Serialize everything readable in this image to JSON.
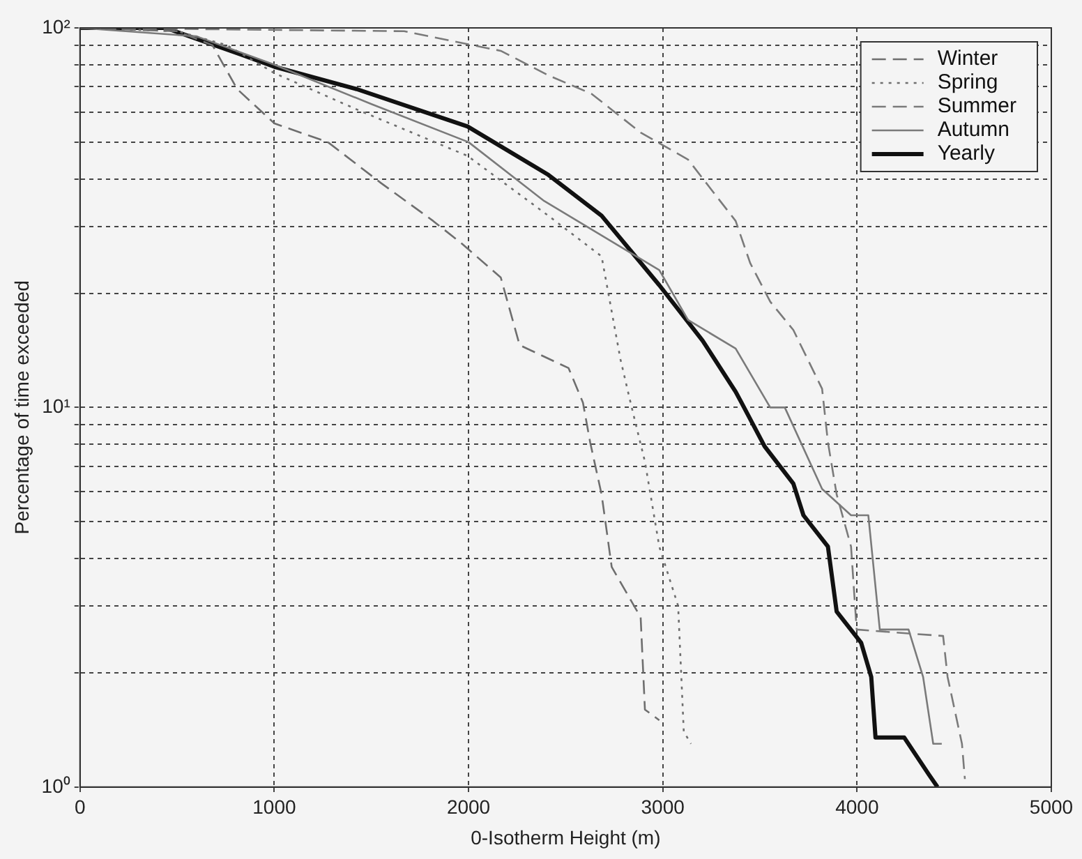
{
  "chart_data": {
    "type": "line",
    "xlabel": "0-Isotherm Height (m)",
    "ylabel": "Percentage of time exceeded",
    "log": "y",
    "grid": true,
    "legend": "top right",
    "marker": "none",
    "xlim": [
      0,
      5000
    ],
    "xticks": [
      0,
      1000,
      2000,
      3000,
      4000,
      5000
    ],
    "ylim": [
      1,
      100
    ],
    "yticks": [
      {
        "value": 1,
        "label": "10⁰"
      },
      {
        "value": 2,
        "label": null
      },
      {
        "value": 3,
        "label": null
      },
      {
        "value": 4,
        "label": null
      },
      {
        "value": 5,
        "label": null
      },
      {
        "value": 6,
        "label": null
      },
      {
        "value": 7,
        "label": null
      },
      {
        "value": 8,
        "label": null
      },
      {
        "value": 9,
        "label": null
      },
      {
        "value": 10,
        "label": "10¹"
      },
      {
        "value": 20,
        "label": null
      },
      {
        "value": 30,
        "label": null
      },
      {
        "value": 40,
        "label": null
      },
      {
        "value": 50,
        "label": null
      },
      {
        "value": 60,
        "label": null
      },
      {
        "value": 70,
        "label": null
      },
      {
        "value": 80,
        "label": null
      },
      {
        "value": 90,
        "label": null
      },
      {
        "value": 100,
        "label": "10²"
      }
    ],
    "series": [
      {
        "name": "Winter",
        "color": "#6e6e6e",
        "line_style": "dashed",
        "x": [
          0,
          500,
          682,
          809,
          1001,
          1276,
          1550,
          1818,
          1966,
          2166,
          2263,
          2515,
          2589,
          2626,
          2685,
          2737,
          2886,
          2908,
          2982
        ],
        "values": [
          100,
          98,
          90,
          69,
          56,
          50,
          39,
          31,
          27,
          22,
          14.6,
          12.7,
          10.3,
          8.1,
          5.9,
          3.8,
          2.8,
          1.6,
          1.5
        ]
      },
      {
        "name": "Spring",
        "color": "#6e6e6e",
        "line_style": "dotted",
        "x": [
          0,
          500,
          757,
          1001,
          1424,
          1995,
          2411,
          2685,
          2782,
          2834,
          2908,
          2982,
          3079,
          3108,
          3145
        ],
        "values": [
          100,
          98,
          90,
          76,
          61,
          46,
          32,
          25,
          13.4,
          10.3,
          7.2,
          4.3,
          3,
          1.4,
          1.3
        ]
      },
      {
        "name": "Summer",
        "color": "#7a7a7a",
        "line_style": "dashed",
        "x": [
          0,
          1669,
          2166,
          2411,
          2634,
          2886,
          3130,
          3375,
          3450,
          3553,
          3672,
          3820,
          3850,
          3895,
          3969,
          3998,
          4443,
          4466,
          4540,
          4555
        ],
        "values": [
          100,
          98,
          87,
          75,
          67,
          53,
          45,
          31,
          24,
          19,
          16,
          11.2,
          8.1,
          5.9,
          4.3,
          2.6,
          2.5,
          1.95,
          1.3,
          1.05
        ]
      },
      {
        "name": "Autumn",
        "color": "#7a7a7a",
        "line_style": "solid",
        "x": [
          0,
          600,
          1000,
          1500,
          2000,
          2389,
          2982,
          3130,
          3375,
          3553,
          3628,
          3820,
          3969,
          4058,
          4117,
          4265,
          4340,
          4392,
          4436
        ],
        "values": [
          100,
          95,
          80,
          63,
          50,
          35,
          23,
          17,
          14.3,
          10,
          10,
          6.1,
          5.2,
          5.2,
          2.6,
          2.6,
          1.95,
          1.3,
          1.3
        ]
      },
      {
        "name": "Yearly",
        "color": "#111111",
        "line_style": "solid",
        "x": [
          0,
          440,
          831,
          1001,
          1424,
          1995,
          2411,
          2685,
          2982,
          3205,
          3375,
          3405,
          3524,
          3672,
          3724,
          3850,
          3895,
          4021,
          4073,
          4095,
          4243,
          4369,
          4414
        ],
        "values": [
          100,
          100,
          85,
          79,
          69,
          55,
          41,
          32,
          21,
          15,
          11,
          10.3,
          7.9,
          6.3,
          5.2,
          4.3,
          2.9,
          2.4,
          1.95,
          1.35,
          1.35,
          1.08,
          1
        ]
      }
    ]
  }
}
